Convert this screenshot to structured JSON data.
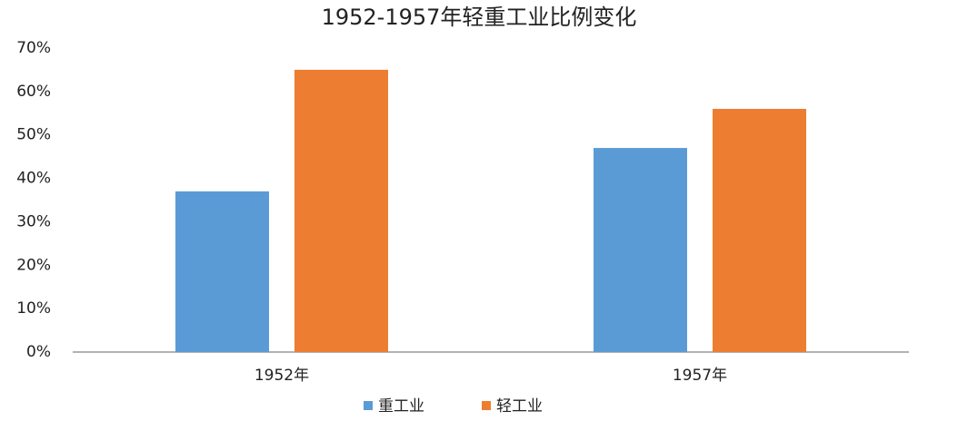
{
  "chart_data": {
    "type": "bar",
    "title": "1952-1957年轻重工业比例变化",
    "categories": [
      "1952年",
      "1957年"
    ],
    "series": [
      {
        "name": "重工业",
        "color": "#5b9bd5",
        "values": [
          37,
          47
        ]
      },
      {
        "name": "轻工业",
        "color": "#ed7d31",
        "values": [
          65,
          56
        ]
      }
    ],
    "ylim": [
      0,
      70
    ],
    "yticks": [
      {
        "value": 0,
        "label": "0%"
      },
      {
        "value": 10,
        "label": "10%"
      },
      {
        "value": 20,
        "label": "20%"
      },
      {
        "value": 30,
        "label": "30%"
      },
      {
        "value": 40,
        "label": "40%"
      },
      {
        "value": 50,
        "label": "50%"
      },
      {
        "value": 60,
        "label": "60%"
      },
      {
        "value": 70,
        "label": "70%"
      }
    ],
    "grid": false,
    "legend": "bottom"
  }
}
